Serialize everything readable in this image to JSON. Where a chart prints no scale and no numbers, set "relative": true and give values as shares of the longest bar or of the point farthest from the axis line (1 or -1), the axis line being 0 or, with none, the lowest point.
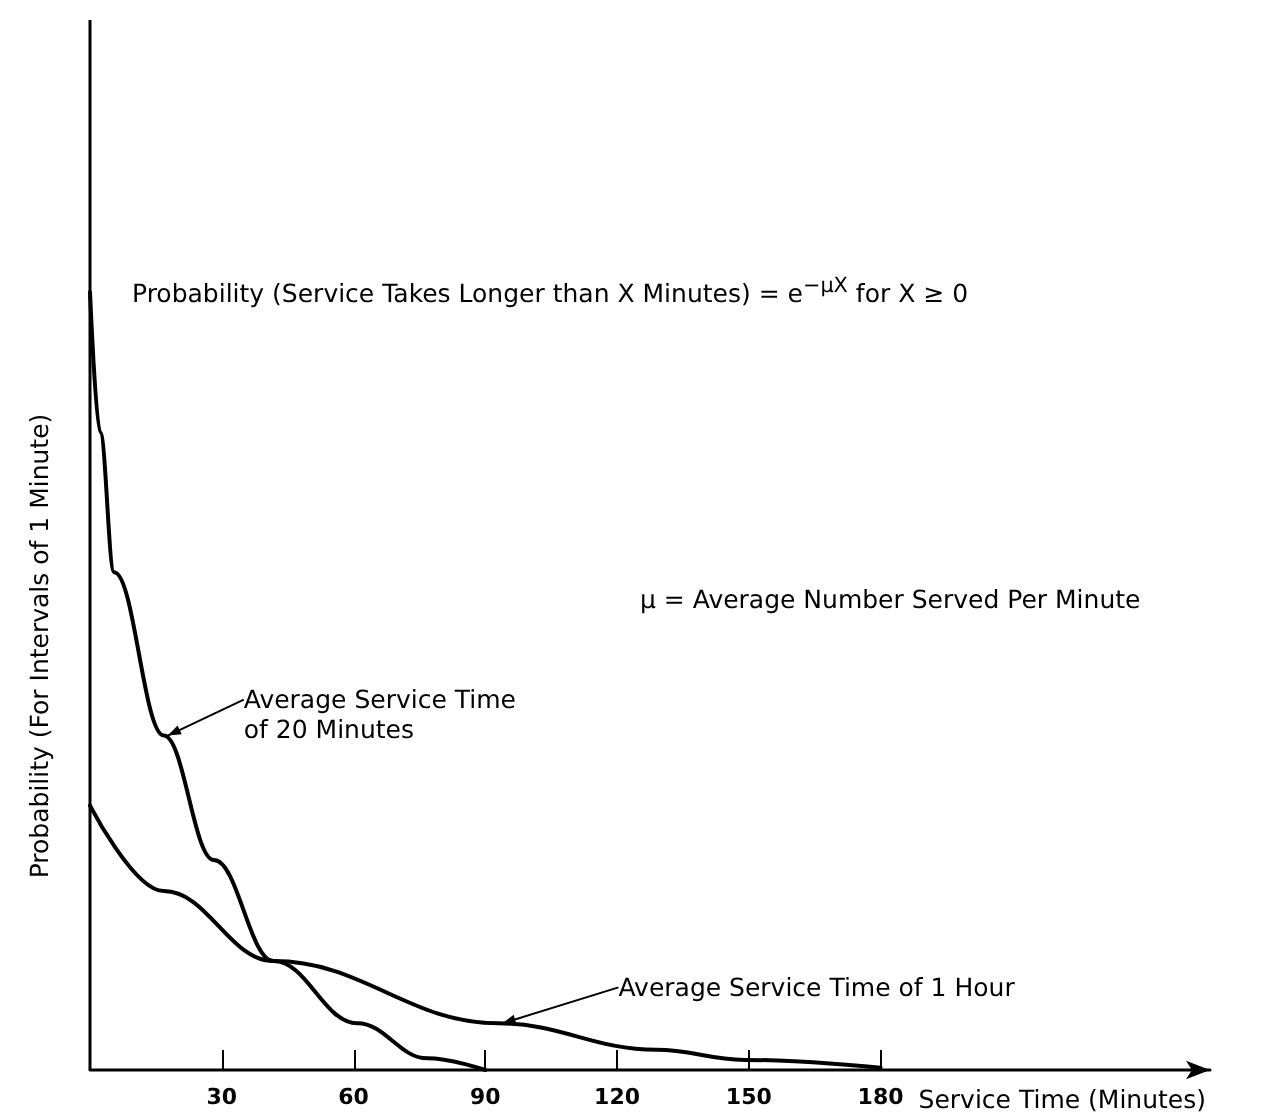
{
  "chart_data": {
    "type": "line",
    "relative": true,
    "xlabel": "Service Time (Minutes)",
    "ylabel": "Probability (For Intervals of 1 Minute)",
    "xlim": [
      0,
      255
    ],
    "xticks": [
      30,
      60,
      90,
      120,
      150,
      180
    ],
    "series": [
      {
        "color": "#000000",
        "x": [
          0,
          2.3,
          5.5,
          16.8,
          28.2,
          41.8,
          60.9,
          76.8,
          90
        ],
        "values": [
          1,
          0.82,
          0.64,
          0.43,
          0.27,
          0.14,
          0.06,
          0.015,
          0
        ]
      },
      {
        "color": "#000000",
        "x": [
          0,
          16.8,
          41.8,
          93,
          129,
          149,
          180
        ],
        "values": [
          0.34,
          0.23,
          0.14,
          0.06,
          0.026,
          0.013,
          0.003
        ]
      }
    ],
    "annotations": [
      "Probability (Service Takes Longer than X Minutes) = e$^{−μX}$ for X ≥ 0",
      "μ = Average Number Served Per Minute",
      {
        "text": "Average Service Time\nof 20 Minutes",
        "x": 16.8,
        "y": 0.43
      },
      {
        "text": "Average Service Time of 1 Hour",
        "x": 93,
        "y": 0.06
      }
    ],
    "grid": false,
    "marker": "none",
    "line_style": "solid"
  }
}
